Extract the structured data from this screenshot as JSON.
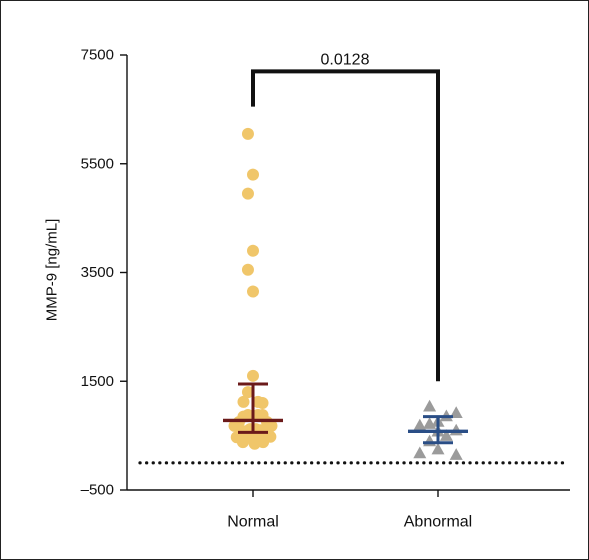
{
  "chart_data": {
    "type": "scatter",
    "ylabel": "MMP-9 [ng/mL]",
    "xlabel": "",
    "ylim": [
      -500,
      7500
    ],
    "yticks": [
      {
        "value": 7500,
        "label": "7500"
      },
      {
        "value": 5500,
        "label": "5500"
      },
      {
        "value": 3500,
        "label": "3500"
      },
      {
        "value": 1500,
        "label": "1500"
      },
      {
        "value": -500,
        "label": "–500"
      }
    ],
    "categories": [
      "Normal",
      "Abnormal"
    ],
    "reference_line_y": 0,
    "series": [
      {
        "category": "Normal",
        "marker": "circle",
        "color": "#F0C66A",
        "stat_color": "#6B1A1A",
        "central": 780,
        "error_low": 560,
        "error_high": 1450,
        "points": [
          {
            "jitter": -0.18,
            "y": 6050
          },
          {
            "jitter": 0.0,
            "y": 5300
          },
          {
            "jitter": -0.18,
            "y": 4950
          },
          {
            "jitter": 0.0,
            "y": 3900
          },
          {
            "jitter": -0.18,
            "y": 3550
          },
          {
            "jitter": 0.0,
            "y": 3150
          },
          {
            "jitter": 0.0,
            "y": 1600
          },
          {
            "jitter": -0.18,
            "y": 1300
          },
          {
            "jitter": -0.34,
            "y": 1120
          },
          {
            "jitter": 0.18,
            "y": 1120
          },
          {
            "jitter": 0.34,
            "y": 1100
          },
          {
            "jitter": -0.34,
            "y": 850
          },
          {
            "jitter": -0.18,
            "y": 880
          },
          {
            "jitter": 0.0,
            "y": 850
          },
          {
            "jitter": 0.18,
            "y": 880
          },
          {
            "jitter": 0.34,
            "y": 880
          },
          {
            "jitter": -0.5,
            "y": 750
          },
          {
            "jitter": 0.5,
            "y": 750
          },
          {
            "jitter": -0.66,
            "y": 680
          },
          {
            "jitter": 0.66,
            "y": 680
          },
          {
            "jitter": -0.1,
            "y": 620
          },
          {
            "jitter": 0.1,
            "y": 620
          },
          {
            "jitter": 0.26,
            "y": 600
          },
          {
            "jitter": -0.26,
            "y": 580
          },
          {
            "jitter": 0.42,
            "y": 560
          },
          {
            "jitter": -0.42,
            "y": 540
          },
          {
            "jitter": 0.06,
            "y": 470
          },
          {
            "jitter": 0.62,
            "y": 480
          },
          {
            "jitter": -0.58,
            "y": 470
          },
          {
            "jitter": 0.22,
            "y": 450
          },
          {
            "jitter": -0.26,
            "y": 450
          },
          {
            "jitter": 0.36,
            "y": 380
          },
          {
            "jitter": -0.36,
            "y": 380
          },
          {
            "jitter": 0.06,
            "y": 350
          }
        ]
      },
      {
        "category": "Abnormal",
        "marker": "triangle",
        "color": "#9B9B9B",
        "stat_color": "#2A4E86",
        "central": 580,
        "error_low": 370,
        "error_high": 850,
        "points": [
          {
            "jitter": -0.3,
            "y": 1040
          },
          {
            "jitter": -0.3,
            "y": 720
          },
          {
            "jitter": -0.3,
            "y": 400
          },
          {
            "jitter": 0.3,
            "y": 860
          },
          {
            "jitter": 0.3,
            "y": 500
          },
          {
            "jitter": 0.0,
            "y": 760
          },
          {
            "jitter": 0.0,
            "y": 580
          },
          {
            "jitter": 0.0,
            "y": 250
          },
          {
            "jitter": -0.65,
            "y": 690
          },
          {
            "jitter": -0.65,
            "y": 180
          },
          {
            "jitter": 0.65,
            "y": 920
          },
          {
            "jitter": 0.65,
            "y": 600
          },
          {
            "jitter": 0.65,
            "y": 150
          }
        ]
      }
    ],
    "significance": {
      "label": "0.0128",
      "bracket_y": 7200,
      "left_end": 6550,
      "right_end": 1500
    }
  }
}
